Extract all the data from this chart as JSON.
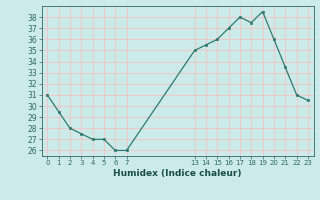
{
  "x": [
    0,
    1,
    2,
    3,
    4,
    5,
    6,
    7,
    13,
    14,
    15,
    16,
    17,
    18,
    19,
    20,
    21,
    22,
    23
  ],
  "y": [
    31,
    29.5,
    28,
    27.5,
    27,
    27,
    26,
    26,
    35,
    35.5,
    36,
    37,
    38,
    37.5,
    38.5,
    36,
    33.5,
    31,
    30.5
  ],
  "xlabel": "Humidex (Indice chaleur)",
  "xticks": [
    0,
    1,
    2,
    3,
    4,
    5,
    6,
    7,
    13,
    14,
    15,
    16,
    17,
    18,
    19,
    20,
    21,
    22,
    23
  ],
  "yticks": [
    26,
    27,
    28,
    29,
    30,
    31,
    32,
    33,
    34,
    35,
    36,
    37,
    38
  ],
  "ylim": [
    25.5,
    39.0
  ],
  "xlim": [
    -0.5,
    23.5
  ],
  "line_color": "#2d7b6e",
  "marker_color": "#2d7b6e",
  "bg_color": "#cdeaea",
  "grid_color": "#f0c8c8",
  "tick_label_color": "#2d6b5e",
  "xlabel_color": "#1a4f45"
}
